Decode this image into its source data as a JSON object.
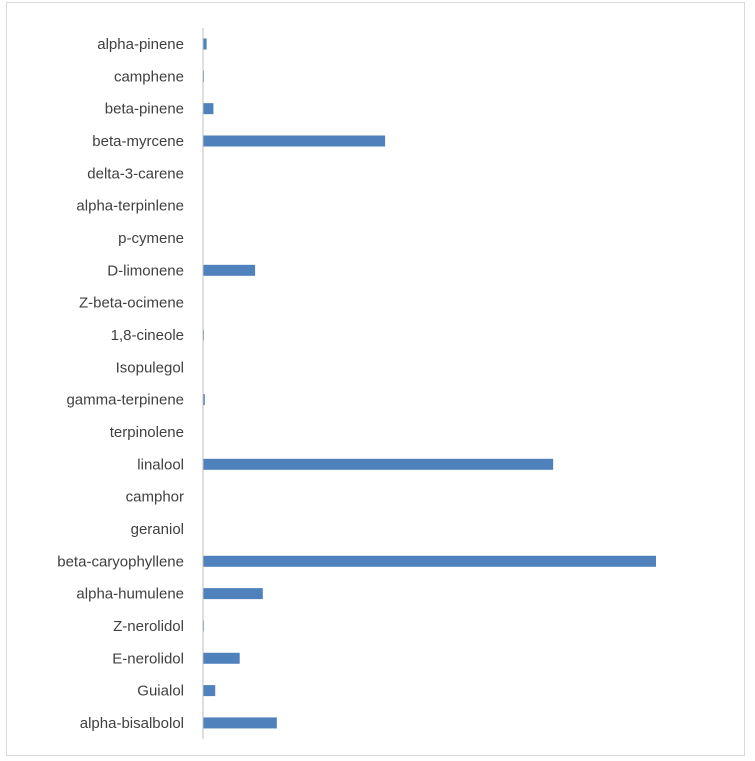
{
  "chart_data": {
    "type": "bar",
    "orientation": "horizontal",
    "categories": [
      "alpha-pinene",
      "camphene",
      "beta-pinene",
      "beta-myrcene",
      "delta-3-carene",
      "alpha-terpinlene",
      "p-cymene",
      "D-limonene",
      "Z-beta-ocimene",
      "1,8-cineole",
      "Isopulegol",
      "gamma-terpinene",
      "terpinolene",
      "linalool",
      "camphor",
      "geraniol",
      "beta-caryophyllene",
      "alpha-humulene",
      "Z-nerolidol",
      "E-nerolidol",
      "Guialol",
      "alpha-bisalbolol"
    ],
    "values": [
      0.8,
      0.2,
      2.3,
      40.2,
      0,
      0,
      0,
      11.5,
      0,
      0.2,
      0,
      0.4,
      0,
      77.3,
      0,
      0,
      100,
      13.2,
      0.2,
      8.1,
      2.7,
      16.3
    ],
    "xlim": [
      0,
      100
    ],
    "title": "",
    "xlabel": "",
    "ylabel": "",
    "grid": false,
    "legend": "none",
    "bar_color": "#4f81bd",
    "axis_color": "#bfbfbf"
  }
}
